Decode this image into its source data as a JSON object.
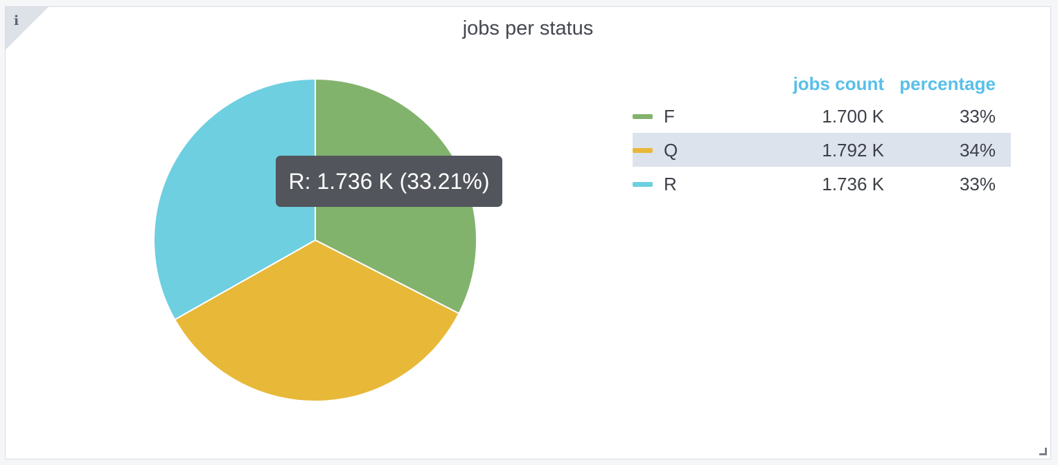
{
  "panel": {
    "info_icon": "info-icon",
    "title": "jobs per status"
  },
  "chart_data": {
    "type": "pie",
    "title": "jobs per status",
    "categories": [
      "F",
      "Q",
      "R"
    ],
    "values": [
      1700,
      1792,
      1736
    ],
    "colors": [
      "#82b36d",
      "#e8b839",
      "#6ecfe0"
    ],
    "tooltip": "R: 1.736 K (33.21%)"
  },
  "legend": {
    "headers": {
      "count": "jobs count",
      "percentage": "percentage"
    },
    "rows": [
      {
        "label": "F",
        "count": "1.700 K",
        "percentage": "33%",
        "color": "#82b36d",
        "highlighted": false
      },
      {
        "label": "Q",
        "count": "1.792 K",
        "percentage": "34%",
        "color": "#e8b839",
        "highlighted": true
      },
      {
        "label": "R",
        "count": "1.736 K",
        "percentage": "33%",
        "color": "#6ecfe0",
        "highlighted": false
      }
    ]
  }
}
